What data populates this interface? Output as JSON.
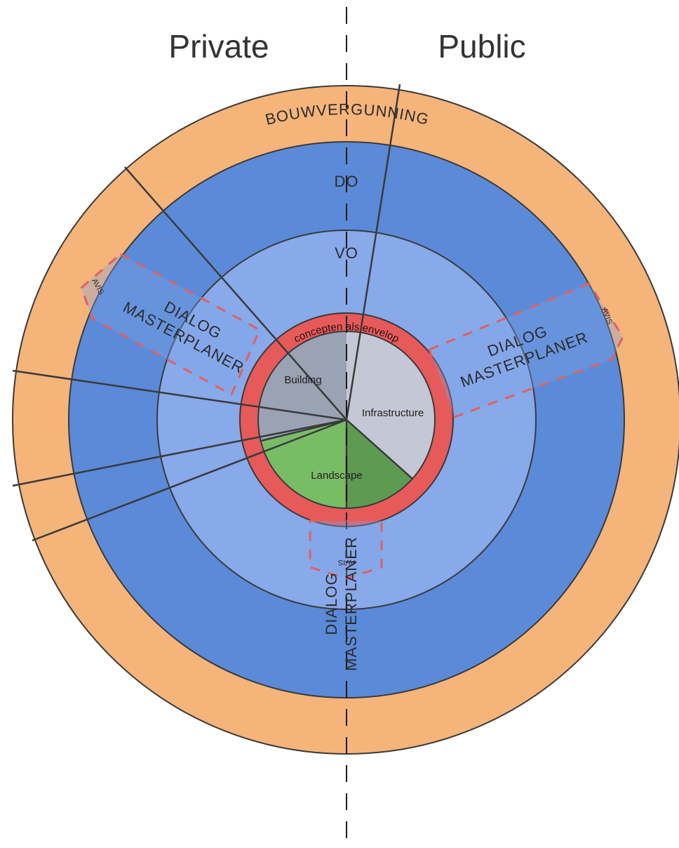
{
  "headings": {
    "private": "Private",
    "public": "Public"
  },
  "rings": {
    "outer": "BOUWVERGUNNING",
    "do": "DO",
    "vo": "VO",
    "envelop": "concepten als envelop"
  },
  "core": {
    "building": "Building",
    "infrastructure": "Infrastructure",
    "landscape": "Landscape"
  },
  "dialogs": [
    {
      "line1": "DIALOG",
      "line2": "MASTERPLANER",
      "tag": "AVIS"
    },
    {
      "line1": "DIALOG",
      "line2": "MASTERPLANER",
      "tag": "AVIS"
    },
    {
      "line1": "DIALOG",
      "line2": "MASTERPLANER",
      "tag": "AVIS"
    }
  ],
  "colors": {
    "outer_ring": "#f4b47a",
    "do_ring": "#5b8ad8",
    "vo_ring": "#88a9ea",
    "envelop_ring": "#e65a5a",
    "building": "#9aa2b4",
    "infrastructure": "#c4c8d6",
    "landscape_light": "#79bc66",
    "landscape_dark": "#5e9b52",
    "dash": "#e06060"
  }
}
